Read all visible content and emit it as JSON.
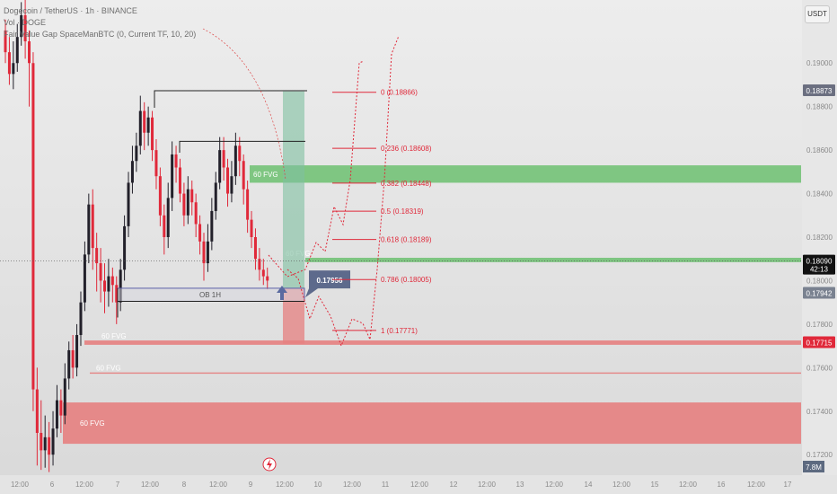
{
  "header": {
    "title": "Dogecoin / TetherUS · 1h · BINANCE",
    "volume_label": "Vol · DOGE",
    "indicator": "Fair Value Gap SpaceManBTC (0, Current TF, 10, 20)",
    "currency": "USDT"
  },
  "colors": {
    "bull": "#22202a",
    "bear": "#e0293a",
    "fvg_green": "#6cc070",
    "fvg_red": "#e67a7a",
    "fib": "#e0293a",
    "ob": "#5a5fa8",
    "projection": "#e0293a"
  },
  "price_axis": {
    "ticks": [
      "0.19000",
      "0.18800",
      "0.18600",
      "0.18400",
      "0.18200",
      "0.18000",
      "0.17800",
      "0.17600",
      "0.17400",
      "0.17200"
    ],
    "badges": [
      {
        "value": "0.18873",
        "color": "#6b6f80",
        "price": 0.18873
      },
      {
        "value": "0.18090",
        "sub": "42:13",
        "color": "#111111",
        "price": 0.1809
      },
      {
        "value": "0.17942",
        "color": "#7a8290",
        "price": 0.17942
      },
      {
        "value": "0.17715",
        "color": "#e0293a",
        "price": 0.17715
      }
    ],
    "volume_badge": "7.8M"
  },
  "time_axis": {
    "labels": [
      "12:00",
      "6",
      "12:00",
      "7",
      "12:00",
      "8",
      "12:00",
      "9",
      "12:00",
      "10",
      "12:00",
      "11",
      "12:00",
      "12",
      "12:00",
      "13",
      "12:00",
      "14",
      "12:00",
      "15",
      "12:00",
      "16",
      "12:00",
      "17"
    ]
  },
  "fibonacci": [
    {
      "label": "0 (0.18866)",
      "price": 0.18866
    },
    {
      "label": "0.236 (0.18608)",
      "price": 0.18608
    },
    {
      "label": "0.382 (0.18448)",
      "price": 0.18448
    },
    {
      "label": "0.5 (0.18319)",
      "price": 0.18319
    },
    {
      "label": "0.618 (0.18189)",
      "price": 0.18189
    },
    {
      "label": "0.786 (0.18005)",
      "price": 0.18005
    },
    {
      "label": "1 (0.17771)",
      "price": 0.17771
    }
  ],
  "fvg_zones": [
    {
      "label": "60 FVG",
      "type": "bull",
      "top": 0.1853,
      "bottom": 0.1845
    },
    {
      "label": "60 FVG",
      "type": "bull",
      "top": 0.18105,
      "bottom": 0.18085
    },
    {
      "label": "60 FVG",
      "type": "bear",
      "top": 0.17725,
      "bottom": 0.17705
    },
    {
      "label": "60 FVG",
      "type": "bear",
      "top": 0.17578,
      "bottom": 0.17572
    },
    {
      "label": "60 FVG",
      "type": "bear",
      "top": 0.1744,
      "bottom": 0.1725
    }
  ],
  "order_block": {
    "label": "OB 1H",
    "top": 0.17965,
    "bottom": 0.17905
  },
  "callout": {
    "label": "0.17956",
    "price": 0.17956
  },
  "chart_data": {
    "type": "candlestick",
    "pair": "DOGE/USDT",
    "timeframe": "1h",
    "ylim": [
      0.1711,
      0.1929
    ],
    "x_range_bars": [
      0,
      240
    ],
    "last_price": 0.1809,
    "visible_candles_note_values_estimated": true,
    "candles": [
      [
        0,
        0.1915,
        0.1905,
        0.192,
        0.19
      ],
      [
        1,
        0.1905,
        0.1895,
        0.1912,
        0.189
      ],
      [
        2,
        0.1895,
        0.19,
        0.191,
        0.1888
      ],
      [
        3,
        0.19,
        0.1912,
        0.1918,
        0.1896
      ],
      [
        4,
        0.1912,
        0.1922,
        0.1928,
        0.1908
      ],
      [
        5,
        0.1922,
        0.191,
        0.1929,
        0.1902
      ],
      [
        6,
        0.191,
        0.19,
        0.1915,
        0.188
      ],
      [
        7,
        0.19,
        0.175,
        0.1905,
        0.174
      ],
      [
        8,
        0.175,
        0.173,
        0.176,
        0.1715
      ],
      [
        9,
        0.173,
        0.1722,
        0.1745,
        0.1713
      ],
      [
        10,
        0.1722,
        0.1728,
        0.1738,
        0.1714
      ],
      [
        11,
        0.1728,
        0.172,
        0.1735,
        0.1712
      ],
      [
        12,
        0.172,
        0.1732,
        0.174,
        0.1715
      ],
      [
        13,
        0.1732,
        0.1745,
        0.1752,
        0.1728
      ],
      [
        14,
        0.1745,
        0.1738,
        0.175,
        0.173
      ],
      [
        15,
        0.1738,
        0.1755,
        0.1762,
        0.1734
      ],
      [
        16,
        0.1755,
        0.1768,
        0.1772,
        0.175
      ],
      [
        17,
        0.1768,
        0.176,
        0.1775,
        0.1755
      ],
      [
        18,
        0.176,
        0.1775,
        0.178,
        0.1756
      ],
      [
        19,
        0.1775,
        0.179,
        0.1795,
        0.177
      ],
      [
        20,
        0.179,
        0.1812,
        0.1818,
        0.1786
      ],
      [
        21,
        0.1812,
        0.1835,
        0.184,
        0.1808
      ],
      [
        22,
        0.1835,
        0.1815,
        0.1842,
        0.1805
      ],
      [
        23,
        0.1815,
        0.1808,
        0.1822,
        0.1795
      ],
      [
        24,
        0.1808,
        0.18,
        0.1815,
        0.179
      ],
      [
        25,
        0.18,
        0.1795,
        0.1808,
        0.1785
      ],
      [
        26,
        0.1795,
        0.1802,
        0.181,
        0.1788
      ],
      [
        27,
        0.1802,
        0.1798,
        0.1806,
        0.179
      ],
      [
        28,
        0.1798,
        0.179,
        0.1802,
        0.178
      ],
      [
        29,
        0.179,
        0.1805,
        0.181,
        0.1786
      ],
      [
        30,
        0.1805,
        0.1825,
        0.183,
        0.18
      ],
      [
        31,
        0.1825,
        0.1845,
        0.185,
        0.182
      ],
      [
        32,
        0.1845,
        0.1855,
        0.1862,
        0.184
      ],
      [
        33,
        0.1855,
        0.1862,
        0.1868,
        0.185
      ],
      [
        34,
        0.1862,
        0.1878,
        0.1885,
        0.1858
      ],
      [
        35,
        0.1878,
        0.1868,
        0.1882,
        0.186
      ],
      [
        36,
        0.1868,
        0.1875,
        0.188,
        0.1862
      ],
      [
        37,
        0.1875,
        0.186,
        0.1878,
        0.1855
      ],
      [
        38,
        0.186,
        0.1848,
        0.1865,
        0.1842
      ],
      [
        39,
        0.1848,
        0.183,
        0.1852,
        0.1825
      ],
      [
        40,
        0.183,
        0.182,
        0.1835,
        0.1812
      ],
      [
        41,
        0.182,
        0.1838,
        0.1845,
        0.1815
      ],
      [
        42,
        0.1838,
        0.1858,
        0.1864,
        0.1832
      ],
      [
        43,
        0.1858,
        0.1852,
        0.1862,
        0.1845
      ],
      [
        44,
        0.1852,
        0.184,
        0.1856,
        0.1836
      ],
      [
        45,
        0.184,
        0.183,
        0.1845,
        0.1825
      ],
      [
        46,
        0.183,
        0.1842,
        0.1848,
        0.1826
      ],
      [
        47,
        0.1842,
        0.1836,
        0.1846,
        0.183
      ],
      [
        48,
        0.1836,
        0.1826,
        0.184,
        0.182
      ],
      [
        49,
        0.1826,
        0.1818,
        0.183,
        0.1812
      ],
      [
        50,
        0.1818,
        0.1808,
        0.1822,
        0.18
      ],
      [
        51,
        0.1808,
        0.1818,
        0.1826,
        0.1804
      ],
      [
        52,
        0.1818,
        0.1832,
        0.1838,
        0.1814
      ],
      [
        53,
        0.1832,
        0.1845,
        0.185,
        0.1828
      ],
      [
        54,
        0.1845,
        0.186,
        0.1866,
        0.1842
      ],
      [
        55,
        0.186,
        0.1852,
        0.1866,
        0.1846
      ],
      [
        56,
        0.1852,
        0.184,
        0.1856,
        0.1834
      ],
      [
        57,
        0.184,
        0.1848,
        0.1855,
        0.1836
      ],
      [
        58,
        0.1848,
        0.1862,
        0.1868,
        0.1844
      ],
      [
        59,
        0.1862,
        0.1855,
        0.1866,
        0.1848
      ],
      [
        60,
        0.1855,
        0.1842,
        0.1858,
        0.1835
      ],
      [
        61,
        0.1842,
        0.1828,
        0.1846,
        0.1822
      ],
      [
        62,
        0.1828,
        0.182,
        0.1832,
        0.1815
      ],
      [
        63,
        0.182,
        0.181,
        0.1824,
        0.1805
      ],
      [
        64,
        0.181,
        0.1805,
        0.1815,
        0.18
      ],
      [
        65,
        0.1805,
        0.1802,
        0.181,
        0.1798
      ],
      [
        66,
        0.1802,
        0.18,
        0.1806,
        0.1796
      ]
    ]
  }
}
